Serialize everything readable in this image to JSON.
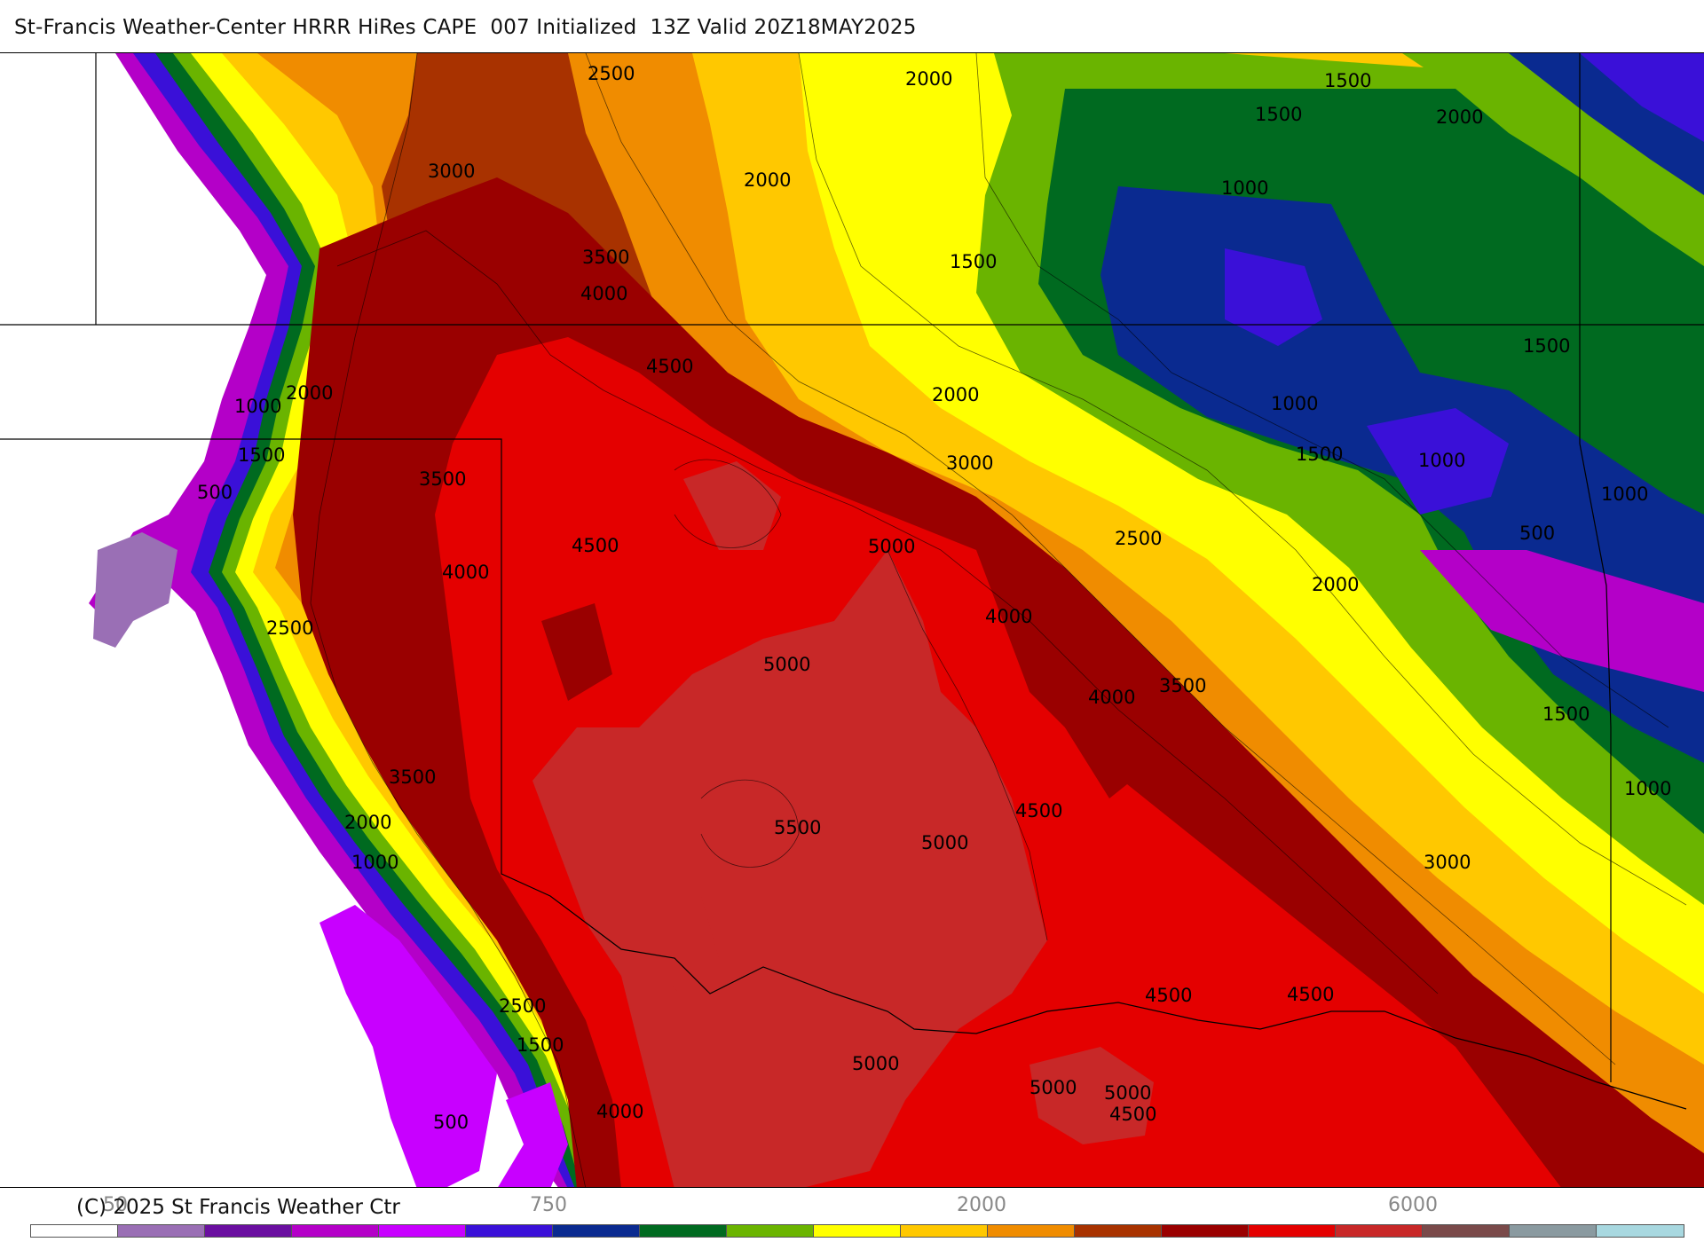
{
  "header": {
    "title": "St-Francis Weather-Center HRRR HiRes CAPE  007 Initialized  13Z Valid 20Z18MAY2025"
  },
  "footer": {
    "copyright": "(C) 2025 St Francis Weather Ctr"
  },
  "colorbar": {
    "tick_labels": [
      "50",
      "750",
      "2000",
      "6000"
    ],
    "colors": [
      "#ffffff",
      "#9a6fb5",
      "#6a0fa0",
      "#b400c8",
      "#c800ff",
      "#3a10d8",
      "#0a2a90",
      "#006a20",
      "#6ab400",
      "#ffff00",
      "#ffc800",
      "#f08c00",
      "#a83200",
      "#9a0000",
      "#e40000",
      "#c82828",
      "#7a4a4a",
      "#8a9aa0",
      "#a8d8e0"
    ]
  },
  "contour_labels": [
    "2500",
    "2000",
    "1500",
    "1500",
    "2000",
    "3000",
    "2000",
    "1000",
    "3500",
    "4000",
    "1500",
    "4500",
    "1500",
    "2000",
    "1000",
    "1000",
    "2000",
    "1500",
    "1000",
    "3000",
    "500",
    "3500",
    "1500",
    "1000",
    "500",
    "4500",
    "5000",
    "2500",
    "4000",
    "2000",
    "4000",
    "2500",
    "5000",
    "4000",
    "3500",
    "1500",
    "3500",
    "4500",
    "1000",
    "2000",
    "5500",
    "5000",
    "3000",
    "1000",
    "4500",
    "4500",
    "2500",
    "1500",
    "5000",
    "5000",
    "5000",
    "4000",
    "500",
    "4500"
  ],
  "colors": {
    "background": "#ffffff",
    "title_text": "#111111",
    "tick_text": "#888888"
  }
}
